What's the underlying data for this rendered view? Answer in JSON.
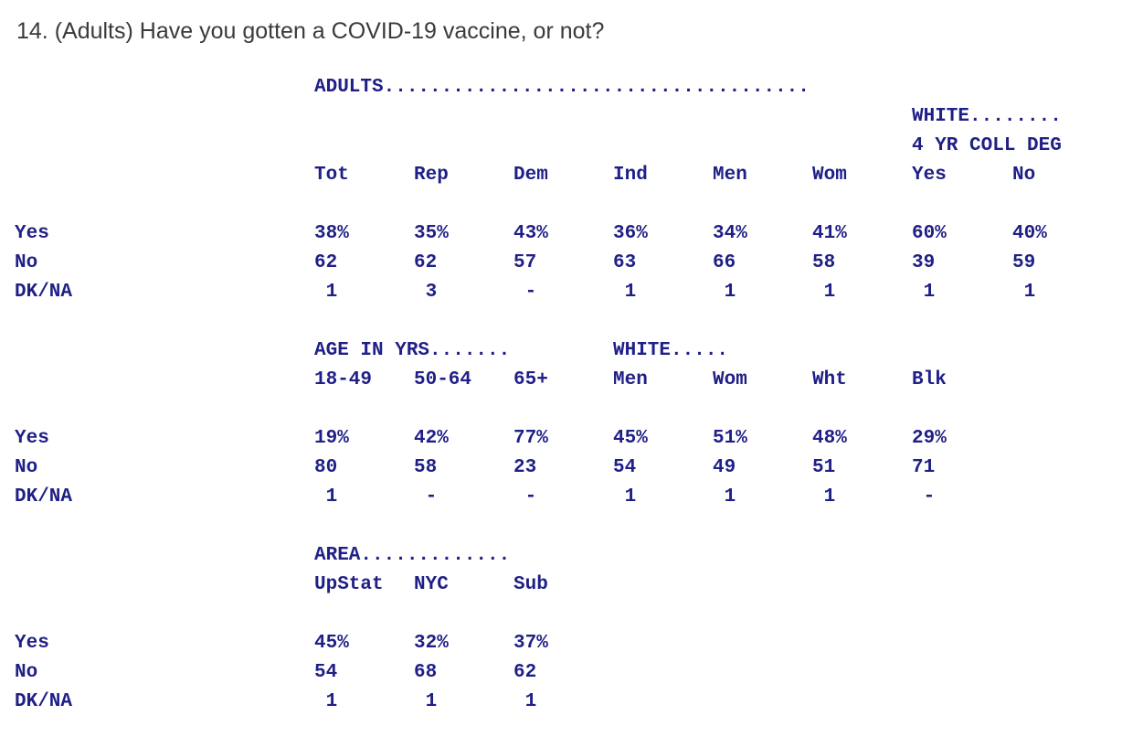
{
  "question": "14. (Adults) Have you gotten a COVID-19 vaccine, or not?",
  "section1": {
    "group_header": "ADULTS.....................................",
    "sub_group_header_line1": "WHITE........",
    "sub_group_header_line2": "4 YR COLL DEG",
    "columns": [
      "Tot",
      "Rep",
      "Dem",
      "Ind",
      "Men",
      "Wom",
      "Yes",
      "No"
    ],
    "rows": [
      {
        "label": "Yes",
        "values": [
          "38%",
          "35%",
          "43%",
          "36%",
          "34%",
          "41%",
          "60%",
          "40%"
        ]
      },
      {
        "label": "No",
        "values": [
          "62",
          "62",
          "57",
          "63",
          "66",
          "58",
          "39",
          "59"
        ]
      },
      {
        "label": "DK/NA",
        "values": [
          " 1",
          " 3",
          " -",
          " 1",
          " 1",
          " 1",
          " 1",
          " 1"
        ]
      }
    ]
  },
  "section2": {
    "group_header_1": "AGE IN YRS.......",
    "group_header_2": "WHITE.....",
    "columns": [
      "18-49",
      "50-64",
      "65+",
      "Men",
      "Wom",
      "Wht",
      "Blk"
    ],
    "rows": [
      {
        "label": "Yes",
        "values": [
          "19%",
          "42%",
          "77%",
          "45%",
          "51%",
          "48%",
          "29%"
        ]
      },
      {
        "label": "No",
        "values": [
          "80",
          "58",
          "23",
          "54",
          "49",
          "51",
          "71"
        ]
      },
      {
        "label": "DK/NA",
        "values": [
          " 1",
          " -",
          " -",
          " 1",
          " 1",
          " 1",
          " -"
        ]
      }
    ]
  },
  "section3": {
    "group_header": "AREA.............",
    "columns": [
      "UpStat",
      "NYC",
      "Sub"
    ],
    "rows": [
      {
        "label": "Yes",
        "values": [
          "45%",
          "32%",
          "37%"
        ]
      },
      {
        "label": "No",
        "values": [
          "54",
          "68",
          "62"
        ]
      },
      {
        "label": "DK/NA",
        "values": [
          " 1",
          " 1",
          " 1"
        ]
      }
    ]
  }
}
